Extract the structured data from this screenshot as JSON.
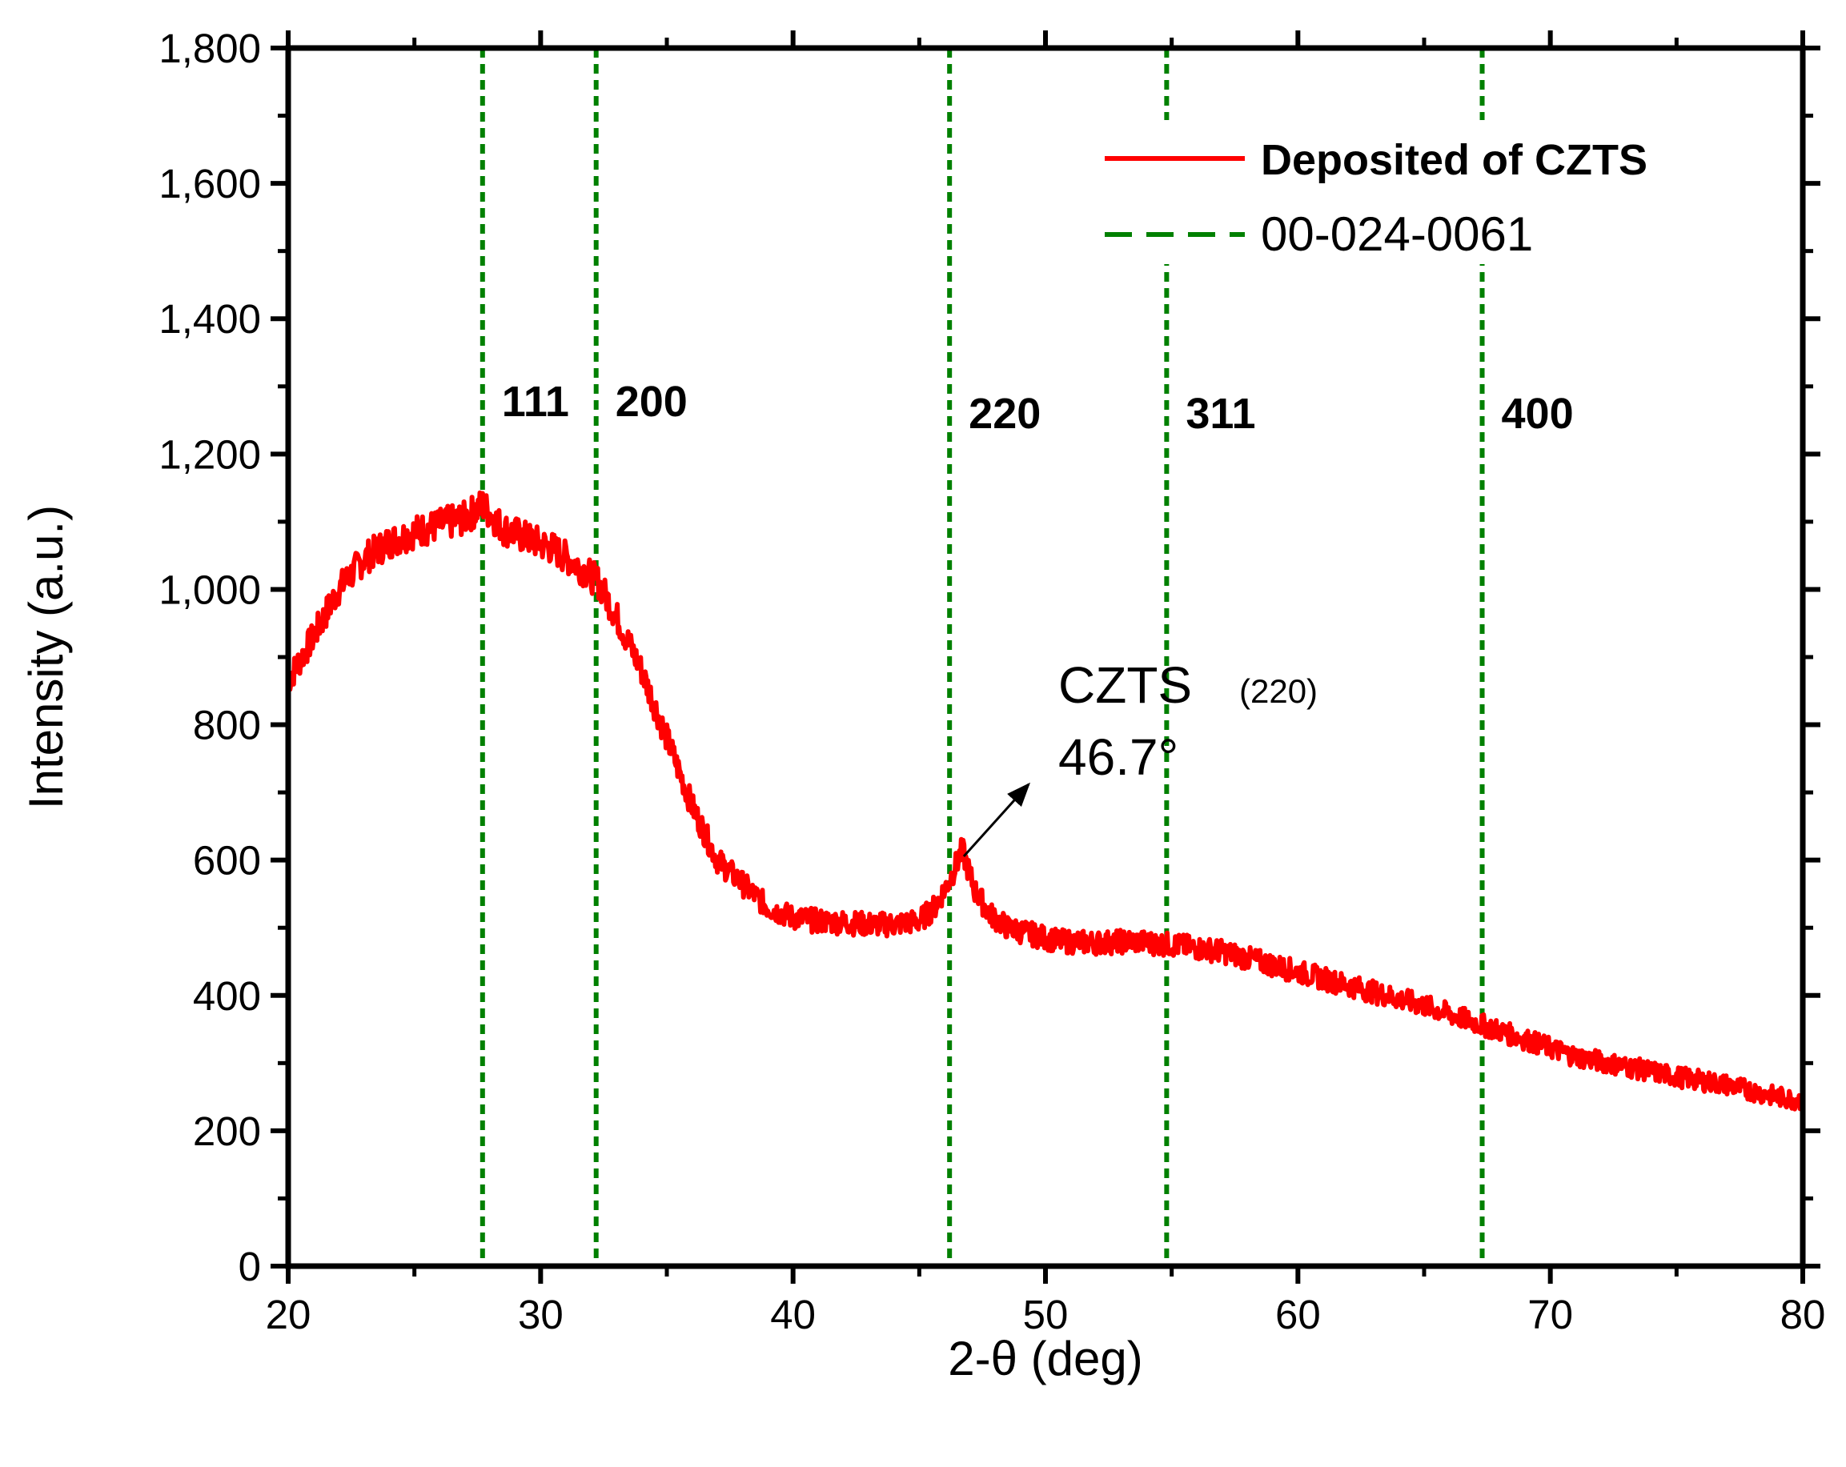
{
  "chart_data": {
    "type": "line",
    "xlabel": "2-θ (deg)",
    "ylabel": "Intensity (a.u.)",
    "xlim": [
      20,
      80
    ],
    "ylim": [
      0,
      1800
    ],
    "x_ticks": [
      20,
      30,
      40,
      50,
      60,
      70,
      80
    ],
    "x_tick_labels": [
      "20",
      "30",
      "40",
      "50",
      "60",
      "70",
      "80"
    ],
    "y_ticks": [
      0,
      200,
      400,
      600,
      800,
      1000,
      1200,
      1400,
      1600,
      1800
    ],
    "y_tick_labels": [
      "0",
      "200",
      "400",
      "600",
      "800",
      "1,000",
      "1,200",
      "1,400",
      "1,600",
      "1,800"
    ],
    "series": [
      {
        "name": "Deposited of CZTS",
        "color": "#ff0000",
        "style": "solid",
        "x": [
          20,
          21,
          22,
          23,
          24,
          25,
          26,
          27,
          27.7,
          28.5,
          29.5,
          30.5,
          31.5,
          32.3,
          33,
          34,
          35,
          36,
          37,
          38,
          39,
          40,
          41,
          42,
          43,
          44,
          45,
          45.6,
          46.2,
          46.7,
          47.2,
          47.8,
          48.5,
          49.5,
          50.5,
          52,
          53.5,
          55,
          57,
          59,
          61,
          63,
          65,
          67,
          69,
          71,
          73,
          75,
          77,
          79,
          80
        ],
        "y": [
          865,
          930,
          1000,
          1045,
          1070,
          1085,
          1095,
          1105,
          1125,
          1090,
          1075,
          1060,
          1035,
          1010,
          960,
          880,
          780,
          680,
          600,
          565,
          530,
          515,
          510,
          508,
          505,
          505,
          510,
          530,
          570,
          615,
          555,
          520,
          500,
          490,
          480,
          478,
          480,
          475,
          465,
          445,
          425,
          405,
          385,
          360,
          335,
          310,
          295,
          280,
          268,
          250,
          245
        ]
      }
    ],
    "reference": {
      "name": "00-024-0061",
      "color": "#008000",
      "style": "dashed",
      "lines": [
        {
          "x": 27.7,
          "label": "111"
        },
        {
          "x": 32.2,
          "label": "200"
        },
        {
          "x": 46.2,
          "label": "220"
        },
        {
          "x": 54.8,
          "label": "311"
        },
        {
          "x": 67.3,
          "label": "400"
        }
      ]
    },
    "annotation": {
      "text": "CZTS",
      "subscript": "(220)",
      "value_text": "46.7°",
      "point": [
        46.7,
        615
      ]
    },
    "legend": {
      "position": "top-right",
      "entries": [
        {
          "label": "Deposited of CZTS",
          "color": "#ff0000",
          "style": "solid",
          "bold": true
        },
        {
          "label": "00-024-0061",
          "color": "#008000",
          "style": "dashed",
          "bold": false
        }
      ]
    }
  }
}
